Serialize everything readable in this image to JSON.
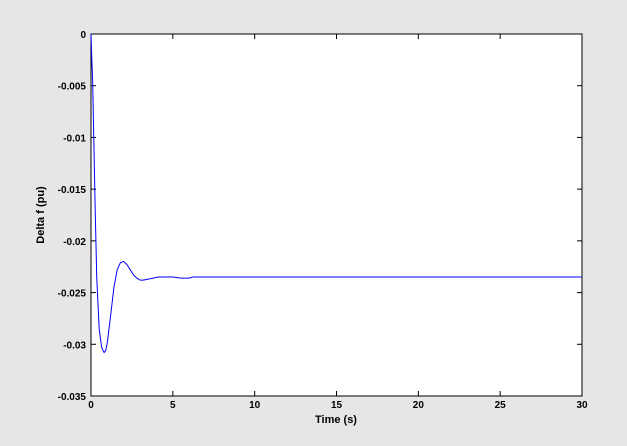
{
  "chart_data": {
    "type": "line",
    "title": "",
    "xlabel": "Time (s)",
    "ylabel": "Delta f (pu)",
    "xlim": [
      0,
      30
    ],
    "ylim": [
      -0.035,
      0
    ],
    "xticks": [
      0,
      5,
      10,
      15,
      20,
      25,
      30
    ],
    "xtick_labels": [
      "0",
      "5",
      "10",
      "15",
      "20",
      "25",
      "30"
    ],
    "yticks": [
      0,
      -0.005,
      -0.01,
      -0.015,
      -0.02,
      -0.025,
      -0.03,
      -0.035
    ],
    "ytick_labels": [
      "0",
      "-0.005",
      "-0.01",
      "-0.015",
      "-0.02",
      "-0.025",
      "-0.03",
      "-0.035"
    ],
    "grid": false,
    "legend": null,
    "line_color": "#0000ff",
    "series": [
      {
        "x": [
          0,
          0.05,
          0.1,
          0.15,
          0.25,
          0.35,
          0.5,
          0.65,
          0.8,
          0.9,
          1.0,
          1.2,
          1.4,
          1.6,
          1.8,
          2.0,
          2.2,
          2.4,
          2.6,
          2.8,
          3.0,
          3.2,
          3.5,
          3.8,
          4.1,
          4.5,
          5.0,
          5.5,
          6.0,
          6.2,
          8,
          10,
          15,
          20,
          25,
          30
        ],
        "y": [
          0,
          -0.0025,
          -0.0045,
          -0.0085,
          -0.0165,
          -0.0235,
          -0.0285,
          -0.0303,
          -0.0308,
          -0.0306,
          -0.0298,
          -0.0272,
          -0.0245,
          -0.0228,
          -0.0221,
          -0.022,
          -0.0223,
          -0.0228,
          -0.0233,
          -0.0236,
          -0.0238,
          -0.0238,
          -0.0237,
          -0.0236,
          -0.0235,
          -0.0235,
          -0.0235,
          -0.0236,
          -0.0236,
          -0.0235,
          -0.0235,
          -0.0235,
          -0.0235,
          -0.0235,
          -0.0235,
          -0.0235
        ]
      }
    ]
  }
}
